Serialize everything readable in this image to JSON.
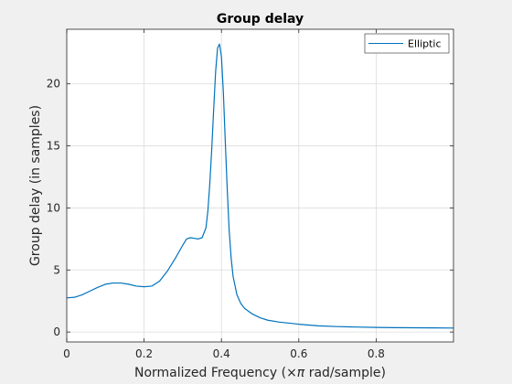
{
  "chart_data": {
    "type": "line",
    "title": "Group delay",
    "xlabel_prefix": "Normalized Frequency  (",
    "xlabel_symbol": "×π",
    "xlabel_suffix": " rad/sample)",
    "ylabel": "Group delay (in samples)",
    "xlim": [
      0,
      1
    ],
    "ylim": [
      -0.8,
      24.4
    ],
    "xticks": [
      0,
      0.2,
      0.4,
      0.6,
      0.8
    ],
    "xtick_labels": [
      "0",
      "0.2",
      "0.4",
      "0.6",
      "0.8"
    ],
    "yticks": [
      0,
      5,
      10,
      15,
      20
    ],
    "ytick_labels": [
      "0",
      "5",
      "10",
      "15",
      "20"
    ],
    "grid": true,
    "legend_position": "top-right",
    "series": [
      {
        "name": "Elliptic",
        "color": "#0072bd",
        "x": [
          0,
          0.02,
          0.04,
          0.06,
          0.08,
          0.1,
          0.12,
          0.14,
          0.16,
          0.18,
          0.2,
          0.22,
          0.24,
          0.26,
          0.28,
          0.3,
          0.31,
          0.32,
          0.33,
          0.34,
          0.35,
          0.36,
          0.365,
          0.37,
          0.375,
          0.38,
          0.385,
          0.39,
          0.395,
          0.4,
          0.405,
          0.41,
          0.415,
          0.42,
          0.425,
          0.43,
          0.44,
          0.45,
          0.46,
          0.48,
          0.5,
          0.52,
          0.55,
          0.6,
          0.65,
          0.7,
          0.75,
          0.8,
          0.85,
          0.9,
          0.95,
          1.0
        ],
        "y": [
          2.75,
          2.8,
          3.0,
          3.3,
          3.6,
          3.85,
          3.95,
          3.95,
          3.85,
          3.7,
          3.65,
          3.7,
          4.1,
          4.9,
          5.9,
          7.0,
          7.5,
          7.6,
          7.55,
          7.5,
          7.6,
          8.4,
          9.8,
          12.0,
          14.8,
          18.0,
          21.0,
          22.9,
          23.2,
          22.2,
          19.3,
          15.3,
          11.5,
          8.2,
          6.0,
          4.5,
          3.0,
          2.3,
          1.9,
          1.45,
          1.15,
          0.95,
          0.8,
          0.63,
          0.5,
          0.44,
          0.4,
          0.37,
          0.35,
          0.34,
          0.33,
          0.32
        ]
      }
    ]
  }
}
